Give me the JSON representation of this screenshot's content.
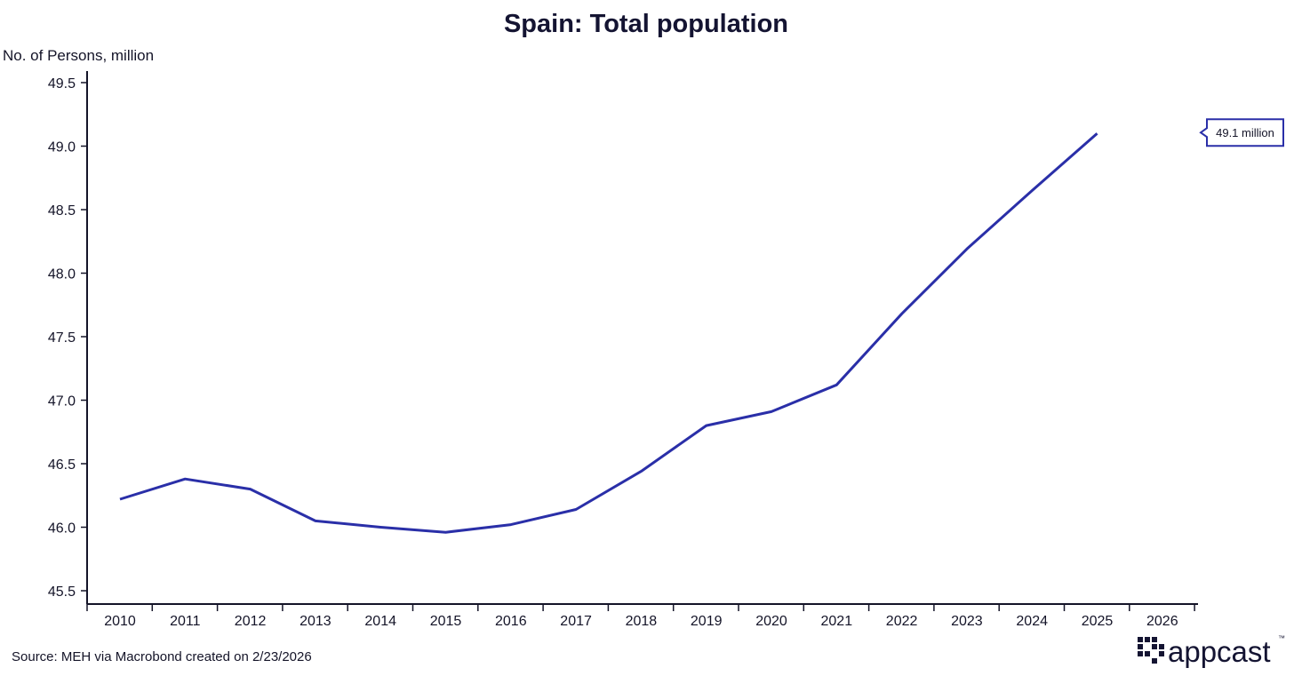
{
  "colors": {
    "line": "#2a2fa8",
    "axis": "#141428",
    "text": "#141428",
    "logo": "#141432"
  },
  "chart_data": {
    "type": "line",
    "title": "Spain: Total population",
    "ylabel": "No. of Persons, million",
    "xlabel": "",
    "ylim": [
      45.5,
      49.5
    ],
    "yticks": [
      45.5,
      46.0,
      46.5,
      47.0,
      47.5,
      48.0,
      48.5,
      49.0,
      49.5
    ],
    "ytick_labels": [
      "45.5",
      "46.0",
      "46.5",
      "47.0",
      "47.5",
      "48.0",
      "48.5",
      "49.0",
      "49.5"
    ],
    "categories": [
      "2010",
      "2011",
      "2012",
      "2013",
      "2014",
      "2015",
      "2016",
      "2017",
      "2018",
      "2019",
      "2020",
      "2021",
      "2022",
      "2023",
      "2024",
      "2025",
      "2026"
    ],
    "series": [
      {
        "name": "Total population",
        "x": [
          "2010",
          "2011",
          "2012",
          "2013",
          "2014",
          "2015",
          "2016",
          "2017",
          "2018",
          "2019",
          "2020",
          "2021",
          "2022",
          "2023",
          "2024",
          "2025"
        ],
        "values": [
          46.22,
          46.38,
          46.3,
          46.05,
          46.0,
          45.96,
          46.02,
          46.14,
          46.44,
          46.8,
          46.91,
          47.12,
          47.68,
          48.19,
          48.65,
          49.1
        ]
      }
    ],
    "annotations": [
      {
        "text": "49.1 million",
        "x": "2025",
        "y": 49.1
      }
    ],
    "grid": false,
    "legend": "none"
  },
  "footer": {
    "source": "Source: MEH via Macrobond created on 2/23/2026",
    "logo": "appcast",
    "logo_tm": "™"
  }
}
